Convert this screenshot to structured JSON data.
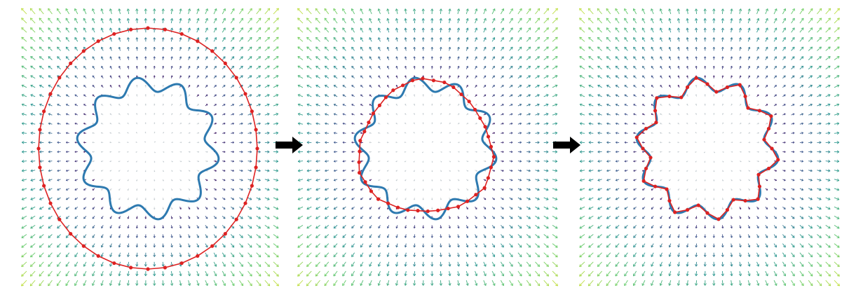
{
  "figure": {
    "panels": [
      {
        "stage": "initial",
        "contour_shape": "ellipse",
        "control_points": 40
      },
      {
        "stage": "intermediate",
        "contour_shape": "polygon-approximation",
        "control_points": 40
      },
      {
        "stage": "converged",
        "contour_shape": "wavy-star",
        "control_points": 40
      }
    ],
    "arrows": [
      {
        "from": "initial",
        "to": "intermediate",
        "icon": "right-arrow-icon"
      },
      {
        "from": "intermediate",
        "to": "converged",
        "icon": "right-arrow-icon"
      }
    ],
    "target_shape": {
      "type": "wavy-circle",
      "lobes": 10,
      "color": "#2e7ab0"
    },
    "contour_color": "#dd2222",
    "vector_field": {
      "type": "radial-gradient-field",
      "colormap": "viridis",
      "grid": 30
    }
  }
}
